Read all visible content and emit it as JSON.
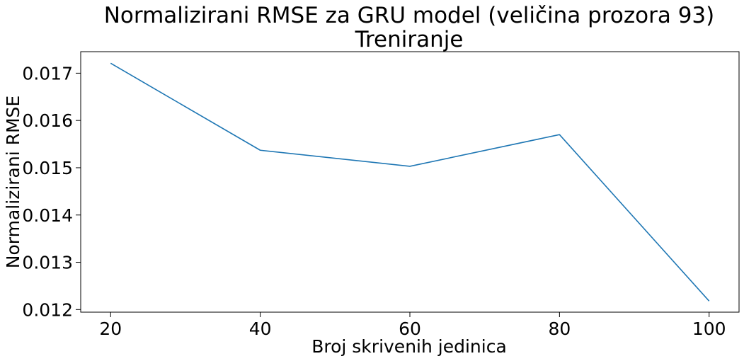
{
  "chart_data": {
    "type": "line",
    "title": "Normalizirani RMSE za GRU model (veličina prozora 93)",
    "subtitle": "Treniranje",
    "xlabel": "Broj skrivenih jedinica",
    "ylabel": "Normalizirani RMSE",
    "x": [
      20,
      40,
      60,
      80,
      100
    ],
    "series": [
      {
        "values": [
          0.01721,
          0.01537,
          0.01503,
          0.0157,
          0.01218
        ],
        "color": "#1f77b4"
      }
    ],
    "xlim": [
      16,
      104
    ],
    "ylim": [
      0.011945,
      0.017455
    ],
    "xticks": [
      20,
      40,
      60,
      80,
      100
    ],
    "xtick_labels": [
      "20",
      "40",
      "60",
      "80",
      "100"
    ],
    "yticks": [
      0.012,
      0.013,
      0.014,
      0.015,
      0.016,
      0.017
    ],
    "ytick_labels": [
      "0.012",
      "0.013",
      "0.014",
      "0.015",
      "0.016",
      "0.017"
    ],
    "grid": false,
    "legend": "none"
  }
}
